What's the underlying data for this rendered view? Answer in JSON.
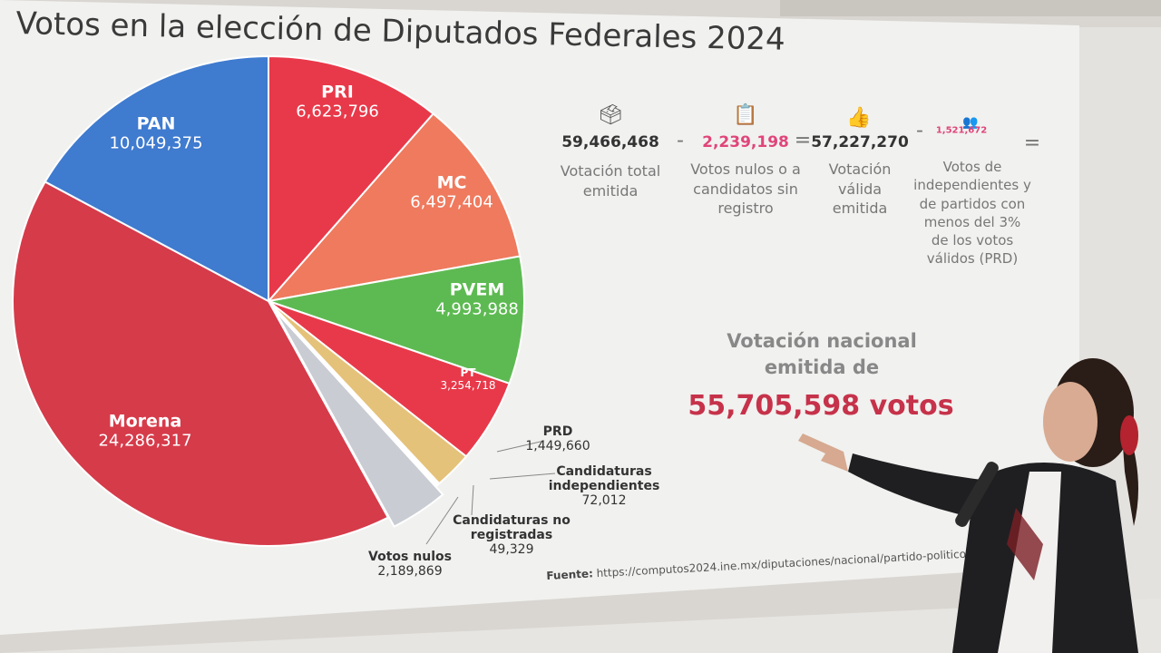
{
  "title": "Votos en la elección de Diputados Federales 2024",
  "chart_data": {
    "type": "pie",
    "title": "Votos en la elección de Diputados Federales 2024",
    "slices": [
      {
        "name": "PRI",
        "value": "6,623,796",
        "num": 6623796,
        "color": "#e8394a",
        "label_pos": "inside"
      },
      {
        "name": "MC",
        "value": "6,497,404",
        "num": 6497404,
        "color": "#ef7a5e",
        "label_pos": "inside"
      },
      {
        "name": "PVEM",
        "value": "4,993,988",
        "num": 4993988,
        "color": "#5dba52",
        "label_pos": "inside"
      },
      {
        "name": "PT",
        "value": "3,254,718",
        "num": 3254718,
        "color": "#e8394a",
        "label_pos": "inside"
      },
      {
        "name": "PRD",
        "value": "1,449,660",
        "num": 1449660,
        "color": "#e5c27a",
        "label_pos": "outside"
      },
      {
        "name": "Candidaturas independientes",
        "value": "72,012",
        "num": 72012,
        "color": "#b9b9b9",
        "label_pos": "outside"
      },
      {
        "name": "Candidaturas no registradas",
        "value": "49,329",
        "num": 49329,
        "color": "#9a9a9a",
        "label_pos": "outside"
      },
      {
        "name": "Votos nulos",
        "value": "2,189,869",
        "num": 2189869,
        "color": "#c9ccd3",
        "label_pos": "outside"
      },
      {
        "name": "Morena",
        "value": "24,286,317",
        "num": 24286317,
        "color": "#d63b4a",
        "label_pos": "inside"
      },
      {
        "name": "PAN",
        "value": "10,049,375",
        "num": 10049375,
        "color": "#3f7bcf",
        "label_pos": "inside"
      }
    ]
  },
  "equation": {
    "total": "59,466,468",
    "total_label": "Votación total emitida",
    "minus1": "-",
    "nulos": "2,239,198",
    "nulos_label": "Votos nulos o a candidatos sin registro",
    "equals1": "=",
    "valida": "57,227,270",
    "valida_label": "Votación válida emitida",
    "minus2": "-",
    "prd": "1,521,672",
    "prd_label": "Votos de independientes y de partidos con menos del 3% de los votos válidos (PRD)",
    "equals2": "="
  },
  "national": {
    "label": "Votación nacional emitida de",
    "value": "55,705,598 votos"
  },
  "source": {
    "label": "Fuente:",
    "url": "https://computos2024.ine.mx/diputaciones/nacional/partido-politico-candid"
  },
  "colors": {
    "accent_red": "#c6324a",
    "pink": "#e0457a"
  }
}
